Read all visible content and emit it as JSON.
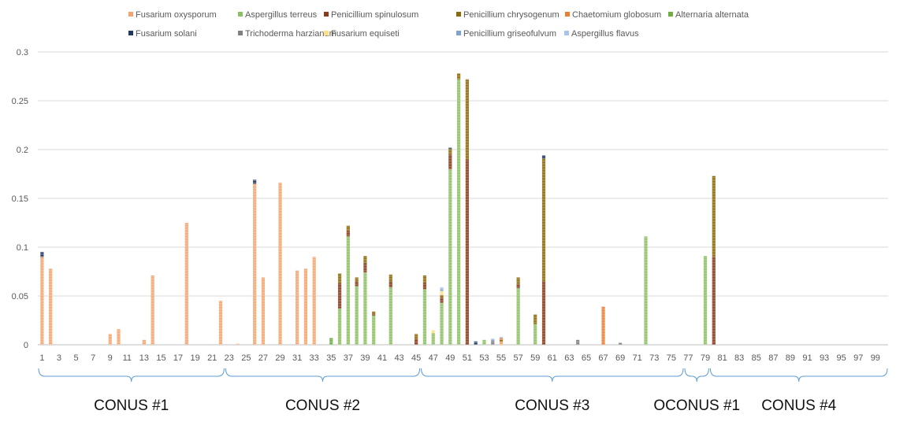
{
  "chart_data": {
    "type": "bar",
    "stacked": true,
    "grid": true,
    "legend_position": "top",
    "ylim": [
      0,
      0.3
    ],
    "y_ticks": [
      "0",
      "0.05",
      "0.1",
      "0.15",
      "0.2",
      "0.25",
      "0.3"
    ],
    "x_count": 100,
    "x_tick_labels": [
      "1",
      "3",
      "5",
      "7",
      "9",
      "11",
      "13",
      "15",
      "17",
      "19",
      "21",
      "23",
      "25",
      "27",
      "29",
      "31",
      "33",
      "35",
      "37",
      "39",
      "41",
      "43",
      "45",
      "47",
      "49",
      "51",
      "53",
      "55",
      "57",
      "59",
      "61",
      "63",
      "65",
      "67",
      "69",
      "71",
      "73",
      "75",
      "77",
      "79",
      "81",
      "83",
      "85",
      "87",
      "89",
      "91",
      "93",
      "95",
      "97",
      "99"
    ],
    "series": [
      {
        "name": "Fusarium oxysporum",
        "color": "#F4A46E",
        "values": {
          "1": 0.09,
          "2": 0.078,
          "9": 0.011,
          "10": 0.016,
          "13": 0.005,
          "14": 0.071,
          "18": 0.125,
          "22": 0.045,
          "24": 0.001,
          "26": 0.165,
          "27": 0.069,
          "29": 0.166,
          "31": 0.076,
          "32": 0.078,
          "33": 0.09,
          "55": 0.003
        }
      },
      {
        "name": "Aspergillus terreus",
        "color": "#8CC063",
        "values": {
          "36": 0.037,
          "37": 0.111,
          "38": 0.06,
          "39": 0.074,
          "40": 0.03,
          "42": 0.059,
          "46": 0.057,
          "47": 0.012,
          "48": 0.043,
          "49": 0.18,
          "50": 0.272,
          "53": 0.005,
          "57": 0.058,
          "59": 0.021,
          "72": 0.111,
          "79": 0.091
        }
      },
      {
        "name": "Penicillium spinulosum",
        "color": "#8B3A1A",
        "values": {
          "36": 0.026,
          "37": 0.006,
          "38": 0.005,
          "39": 0.01,
          "40": 0.002,
          "42": 0.006,
          "45": 0.006,
          "46": 0.007,
          "48": 0.005,
          "49": 0.015,
          "51": 0.19,
          "57": 0.004,
          "60": 0.065,
          "80": 0.09
        }
      },
      {
        "name": "Penicillium chrysogenum",
        "color": "#8D6A08",
        "values": {
          "36": 0.01,
          "37": 0.005,
          "38": 0.004,
          "39": 0.007,
          "40": 0.002,
          "42": 0.007,
          "45": 0.005,
          "46": 0.007,
          "48": 0.003,
          "49": 0.006,
          "50": 0.006,
          "51": 0.082,
          "55": 0.002,
          "57": 0.007,
          "59": 0.01,
          "60": 0.126,
          "80": 0.083
        }
      },
      {
        "name": "Chaetomium globosum",
        "color": "#ED7D31",
        "values": {
          "55": 0.002,
          "67": 0.039
        }
      },
      {
        "name": "Alternaria alternata",
        "color": "#70AD47",
        "values": {
          "35": 0.007
        }
      },
      {
        "name": "Fusarium solani",
        "color": "#203864",
        "values": {
          "1": 0.005,
          "26": 0.004,
          "49": 0.001,
          "52": 0.003,
          "60": 0.003
        }
      },
      {
        "name": "Trichoderma harzianum",
        "color": "#808080",
        "values": {
          "54": 0.004,
          "64": 0.005,
          "69": 0.002
        }
      },
      {
        "name": "Fusarium equiseti",
        "color": "#FFE082",
        "values": {
          "47": 0.003,
          "48": 0.004
        }
      },
      {
        "name": "Penicillium griseofulvum",
        "color": "#7FA3D1",
        "values": {
          "48": 0.002,
          "52": 0.001,
          "54": 0.002
        }
      },
      {
        "name": "Aspergillus flavus",
        "color": "#A9C4EB",
        "values": {
          "48": 0.002,
          "55": 0.001
        }
      }
    ],
    "groups": [
      {
        "label": "CONUS #1",
        "from": 1,
        "to": 22
      },
      {
        "label": "CONUS #2",
        "from": 23,
        "to": 45
      },
      {
        "label": "CONUS #3",
        "from": 46,
        "to": 76
      },
      {
        "label": "OCONUS #1",
        "from": 77,
        "to": 79
      },
      {
        "label": "CONUS #4",
        "from": 80,
        "to": 100
      }
    ]
  }
}
